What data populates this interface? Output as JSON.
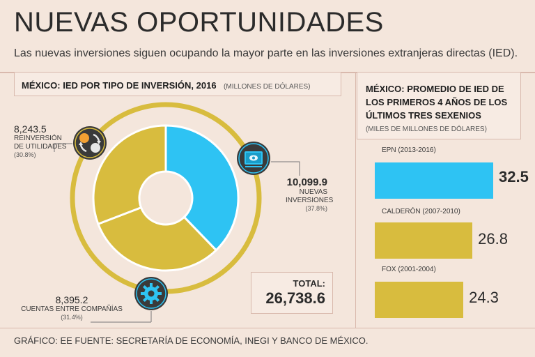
{
  "title": "NUEVAS OPORTUNIDADES",
  "subtitle": "Las nuevas inversiones siguen ocupando la mayor parte en las inversiones extranjeras directas (IED).",
  "footer": "GRÁFICO: EE  FUENTE: SECRETARÍA DE ECONOMÍA, INEGI Y BANCO DE MÉXICO.",
  "colors": {
    "blue": "#2ec3f3",
    "gold": "#d8bc3e",
    "dark": "#2b2b2b",
    "bg": "#f4e6dc"
  },
  "chart_data": [
    {
      "type": "pie",
      "title": "MÉXICO: IED POR TIPO DE INVERSIÓN, 2016",
      "units": "(MILLONES DE DÓLARES)",
      "slices": [
        {
          "value_label": "10,099.9",
          "label": "NUEVAS INVERSIONES",
          "pct_label": "(37.8%)",
          "value": 10099.9,
          "color": "#2ec3f3",
          "icon": "screen-icon"
        },
        {
          "value_label": "8,395.2",
          "label": "CUENTAS ENTRE COMPAÑÍAS",
          "pct_label": "(31.4%)",
          "value": 8395.2,
          "color": "#d8bc3e",
          "icon": "gear-icon"
        },
        {
          "value_label": "8,243.5",
          "label": "REINVERSIÓN DE UTILIDADES",
          "pct_label": "(30.8%)",
          "value": 8243.5,
          "color": "#d8bc3e",
          "icon": "cycle-icon"
        }
      ],
      "total_label": "TOTAL:",
      "total_value": "26,738.6"
    },
    {
      "type": "bar",
      "title": "MÉXICO: PROMEDIO DE IED DE LOS PRIMEROS 4 AÑOS DE LOS ÚLTIMOS TRES SEXENIOS",
      "units": "(MILES DE MILLONES DE DÓLARES)",
      "categories": [
        "EPN (2013-2016)",
        "CALDERÓN (2007-2010)",
        "FOX (2001-2004)"
      ],
      "values": [
        32.5,
        26.8,
        24.3
      ],
      "value_labels": [
        "32.5",
        "26.8",
        "24.3"
      ],
      "colors": [
        "#2ec3f3",
        "#d8bc3e",
        "#d8bc3e"
      ]
    }
  ]
}
